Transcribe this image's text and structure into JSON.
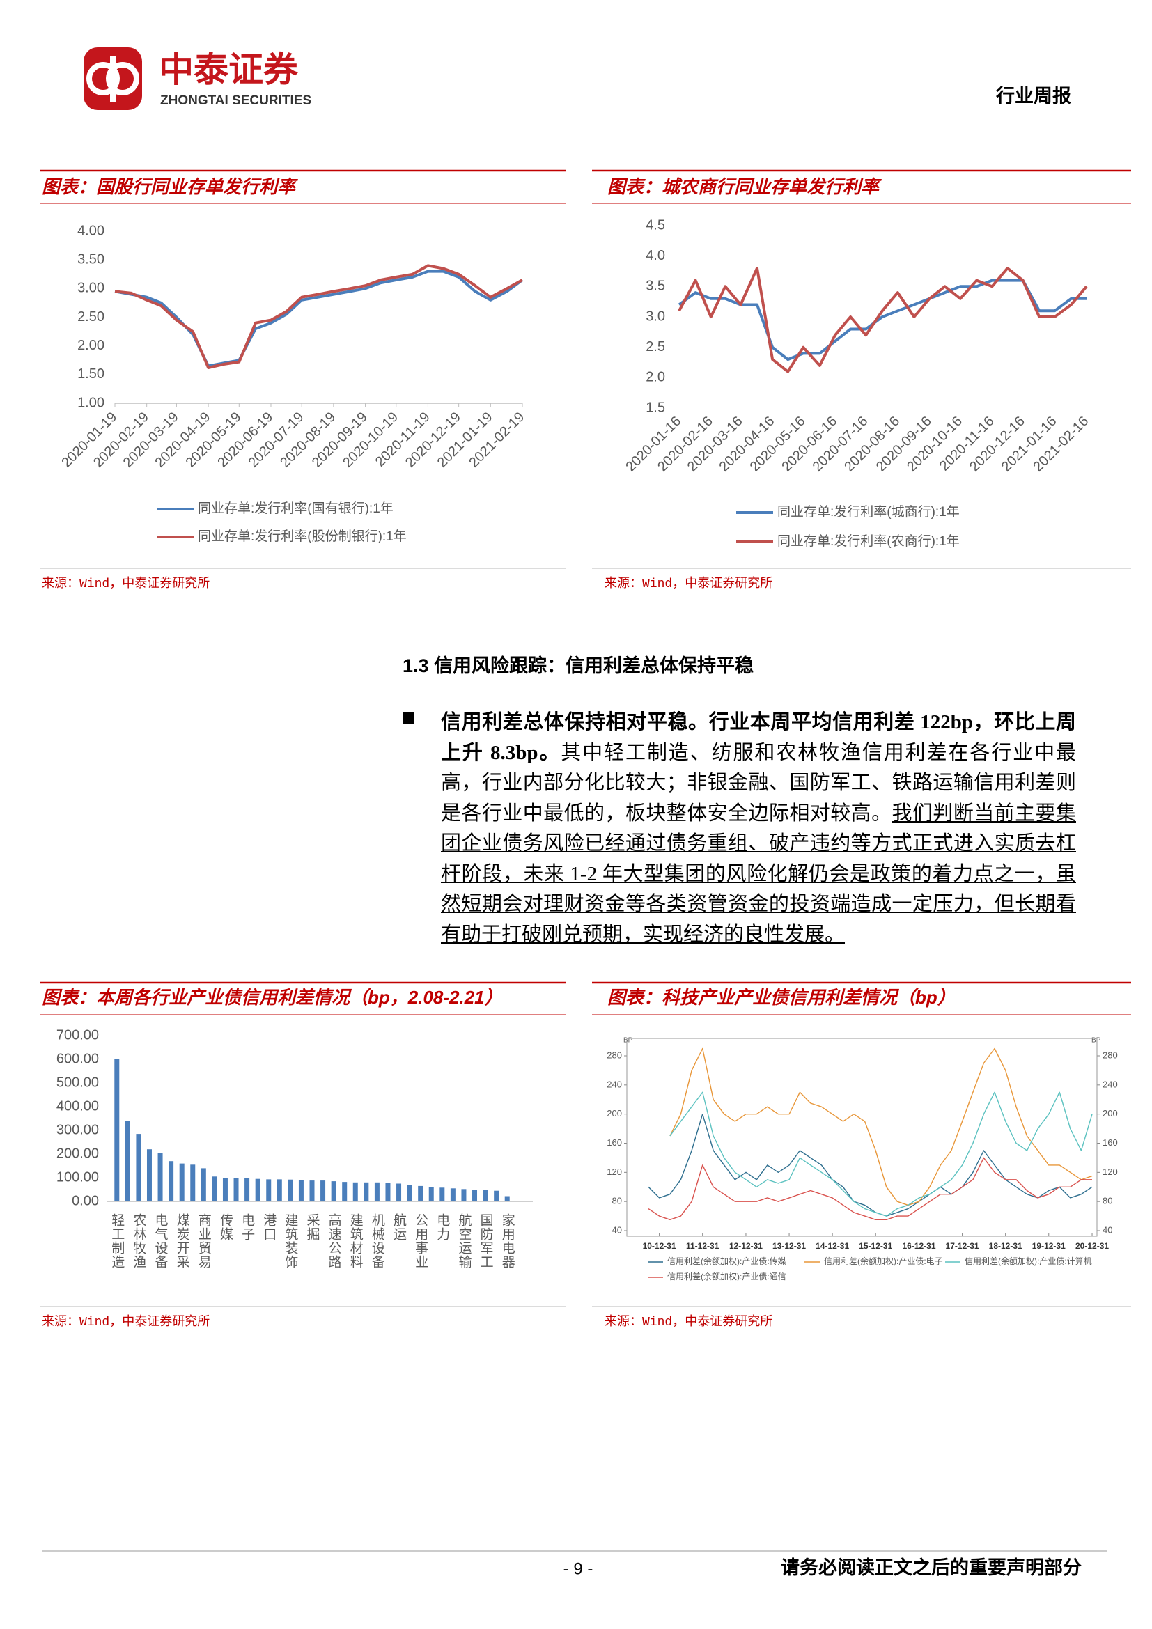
{
  "header": {
    "company": "中泰证券",
    "company_en": "ZHONGTAI SECURITIES",
    "report_type": "行业周报"
  },
  "chart_data": [
    {
      "type": "line",
      "title": "图表：国股行同业存单发行利率",
      "source": "来源：Wind，中泰证券研究所",
      "x": [
        "2020-01-19",
        "2020-02-04",
        "2020-02-19",
        "2020-03-04",
        "2020-03-19",
        "2020-04-04",
        "2020-04-19",
        "2020-05-04",
        "2020-05-19",
        "2020-06-04",
        "2020-06-19",
        "2020-07-04",
        "2020-07-19",
        "2020-08-04",
        "2020-08-19",
        "2020-09-04",
        "2020-09-19",
        "2020-10-04",
        "2020-10-19",
        "2020-11-04",
        "2020-11-19",
        "2020-12-04",
        "2020-12-19",
        "2021-01-04",
        "2021-01-19",
        "2021-02-04",
        "2021-02-19"
      ],
      "xlim": [
        "2020-01-19",
        "2021-02-19"
      ],
      "xticks": [
        "2020-01-19",
        "2020-02-19",
        "2020-03-19",
        "2020-04-19",
        "2020-05-19",
        "2020-06-19",
        "2020-07-19",
        "2020-08-19",
        "2020-09-19",
        "2020-10-19",
        "2020-11-19",
        "2020-12-19",
        "2021-01-19",
        "2021-02-19"
      ],
      "ylim": [
        1,
        4
      ],
      "yticks": [
        {
          "value": 1,
          "label": "1.00"
        },
        {
          "value": 1.5,
          "label": "1.50"
        },
        {
          "value": 2,
          "label": "2.00"
        },
        {
          "value": 2.5,
          "label": "2.50"
        },
        {
          "value": 3,
          "label": "3.00"
        },
        {
          "value": 3.5,
          "label": "3.50"
        },
        {
          "value": 4,
          "label": "4.00"
        }
      ],
      "series": [
        {
          "name": "同业存单:发行利率(国有银行):1年",
          "color": "#4a7ebb",
          "values": [
            2.95,
            2.9,
            2.85,
            2.75,
            2.5,
            2.2,
            1.65,
            1.7,
            1.75,
            2.3,
            2.4,
            2.55,
            2.8,
            2.85,
            2.9,
            2.95,
            3.0,
            3.1,
            3.15,
            3.2,
            3.3,
            3.3,
            3.2,
            2.95,
            2.8,
            2.95,
            3.15
          ]
        },
        {
          "name": "同业存单:发行利率(股份制银行):1年",
          "color": "#c0504d",
          "values": [
            2.95,
            2.92,
            2.8,
            2.7,
            2.45,
            2.25,
            1.62,
            1.68,
            1.72,
            2.4,
            2.45,
            2.6,
            2.85,
            2.9,
            2.95,
            3.0,
            3.05,
            3.15,
            3.2,
            3.25,
            3.4,
            3.35,
            3.25,
            3.05,
            2.85,
            3.0,
            3.15
          ]
        }
      ]
    },
    {
      "type": "line",
      "title": "图表：城农商行同业存单发行利率",
      "source": "来源：Wind，中泰证券研究所",
      "x": [
        "2020-01-16",
        "2020-02-01",
        "2020-02-16",
        "2020-03-01",
        "2020-03-16",
        "2020-04-01",
        "2020-04-16",
        "2020-05-01",
        "2020-05-16",
        "2020-06-01",
        "2020-06-16",
        "2020-07-01",
        "2020-07-16",
        "2020-08-01",
        "2020-08-16",
        "2020-09-01",
        "2020-09-16",
        "2020-10-01",
        "2020-10-16",
        "2020-11-01",
        "2020-11-16",
        "2020-12-01",
        "2020-12-16",
        "2021-01-01",
        "2021-01-16",
        "2021-02-01",
        "2021-02-16"
      ],
      "xlim": [
        "2020-01-16",
        "2021-02-16"
      ],
      "xticks": [
        "2020-01-16",
        "2020-02-16",
        "2020-03-16",
        "2020-04-16",
        "2020-05-16",
        "2020-06-16",
        "2020-07-16",
        "2020-08-16",
        "2020-09-16",
        "2020-10-16",
        "2020-11-16",
        "2020-12-16",
        "2021-01-16",
        "2021-02-16"
      ],
      "ylim": [
        1.5,
        4.5
      ],
      "yticks": [
        1.5,
        {
          "value": 2,
          "label": "2.0"
        },
        2.5,
        {
          "value": 3,
          "label": "3.0"
        },
        3.5,
        {
          "value": 4,
          "label": "4.0"
        },
        4.5
      ],
      "series": [
        {
          "name": "同业存单:发行利率(城商行):1年",
          "color": "#4a7ebb",
          "values": [
            3.2,
            3.4,
            3.3,
            3.3,
            3.2,
            3.2,
            2.5,
            2.3,
            2.4,
            2.4,
            2.6,
            2.8,
            2.8,
            3.0,
            3.1,
            3.2,
            3.3,
            3.4,
            3.5,
            3.5,
            3.6,
            3.6,
            3.6,
            3.1,
            3.1,
            3.3,
            3.3
          ]
        },
        {
          "name": "同业存单:发行利率(农商行):1年",
          "color": "#c0504d",
          "values": [
            3.1,
            3.6,
            3.0,
            3.5,
            3.2,
            3.8,
            2.3,
            2.1,
            2.5,
            2.2,
            2.7,
            3.0,
            2.7,
            3.1,
            3.4,
            3.0,
            3.3,
            3.5,
            3.3,
            3.6,
            3.5,
            3.8,
            3.6,
            3.0,
            3.0,
            3.2,
            3.5
          ]
        }
      ]
    },
    {
      "type": "bar",
      "title": "图表：本周各行业产业债信用利差情况（bp，2.08-2.21）",
      "source": "来源：Wind，中泰证券研究所",
      "categories": [
        "轻工制造",
        null,
        "农林牧渔",
        null,
        "电气设备",
        null,
        "煤炭开采",
        null,
        "商业贸易",
        null,
        "传媒",
        null,
        "电子",
        null,
        "港口",
        null,
        "建筑装饰",
        null,
        "采掘",
        null,
        "高速公路",
        null,
        "建筑材料",
        null,
        "机械设备",
        null,
        "航运",
        null,
        "公用事业",
        null,
        "电力",
        null,
        "航空运输",
        null,
        "国防军工",
        null,
        "家用电器"
      ],
      "values": [
        600,
        340,
        285,
        220,
        205,
        170,
        160,
        155,
        140,
        105,
        100,
        100,
        98,
        95,
        93,
        93,
        92,
        90,
        88,
        88,
        85,
        82,
        80,
        80,
        80,
        78,
        75,
        70,
        65,
        60,
        58,
        55,
        52,
        50,
        48,
        45,
        22
      ],
      "color": "#4a7ebb",
      "ylim": [
        0,
        700
      ],
      "yticks": [
        {
          "value": 0,
          "label": "0.00"
        },
        {
          "value": 100,
          "label": "100.00"
        },
        {
          "value": 200,
          "label": "200.00"
        },
        {
          "value": 300,
          "label": "300.00"
        },
        {
          "value": 400,
          "label": "400.00"
        },
        {
          "value": 500,
          "label": "500.00"
        },
        {
          "value": 600,
          "label": "600.00"
        },
        {
          "value": 700,
          "label": "700.00"
        }
      ]
    },
    {
      "type": "line",
      "title": "图表：科技产业产业债信用利差情况（bp）",
      "source": "来源：Wind，中泰证券研究所",
      "y_label": "BP",
      "y2_label": "BP",
      "x": [
        "10-09-30",
        "10-12-31",
        "11-03-31",
        "11-06-30",
        "11-09-30",
        "11-12-31",
        "12-03-31",
        "12-06-30",
        "12-09-30",
        "12-12-31",
        "13-03-31",
        "13-06-30",
        "13-09-30",
        "13-12-31",
        "14-03-31",
        "14-06-30",
        "14-09-30",
        "14-12-31",
        "15-03-31",
        "15-06-30",
        "15-09-30",
        "15-12-31",
        "16-03-31",
        "16-06-30",
        "16-09-30",
        "16-12-31",
        "17-03-31",
        "17-06-30",
        "17-09-30",
        "17-12-31",
        "18-03-31",
        "18-06-30",
        "18-09-30",
        "18-12-31",
        "19-03-31",
        "19-06-30",
        "19-09-30",
        "19-12-31",
        "20-03-31",
        "20-06-30",
        "20-09-30",
        "20-12-31"
      ],
      "xlim": [
        "10-04-01",
        "21-02-10"
      ],
      "xticks": [
        "10-12-31",
        "11-12-31",
        "12-12-31",
        "13-12-31",
        "14-12-31",
        "15-12-31",
        "16-12-31",
        "17-12-31",
        "18-12-31",
        "19-12-31",
        "20-12-31"
      ],
      "ylim": [
        40,
        280
      ],
      "yticks": [
        40,
        80,
        120,
        160,
        200,
        240,
        280
      ],
      "y2lim": [
        40,
        280
      ],
      "y2ticks": [
        40,
        80,
        120,
        160,
        200,
        240,
        280
      ],
      "series": [
        {
          "name": "信用利差(余额加权):产业债:传媒",
          "color": "#2f6f8f",
          "values": [
            100,
            85,
            90,
            110,
            150,
            200,
            150,
            130,
            110,
            120,
            110,
            130,
            120,
            130,
            150,
            140,
            130,
            110,
            100,
            80,
            75,
            65,
            60,
            65,
            70,
            80,
            90,
            100,
            90,
            100,
            120,
            150,
            130,
            110,
            100,
            90,
            85,
            95,
            100,
            85,
            90,
            100
          ]
        },
        {
          "name": "信用利差(余额加权):产业债:电子",
          "color": "#e8973a",
          "values": [
            null,
            null,
            170,
            200,
            260,
            290,
            220,
            200,
            190,
            200,
            200,
            210,
            200,
            200,
            230,
            215,
            210,
            200,
            190,
            200,
            190,
            150,
            100,
            80,
            75,
            80,
            100,
            130,
            150,
            190,
            230,
            270,
            290,
            260,
            210,
            170,
            150,
            130,
            130,
            120,
            110,
            115
          ]
        },
        {
          "name": "信用利差(余额加权):产业债:计算机",
          "color": "#5cc2c0",
          "values": [
            null,
            null,
            170,
            190,
            210,
            230,
            170,
            140,
            120,
            110,
            100,
            110,
            105,
            110,
            140,
            130,
            120,
            110,
            95,
            80,
            70,
            65,
            60,
            70,
            75,
            85,
            90,
            100,
            110,
            130,
            160,
            200,
            230,
            190,
            160,
            150,
            180,
            200,
            230,
            180,
            150,
            200
          ]
        },
        {
          "name": "信用利差(余额加权):产业债:通信",
          "color": "#d9534f",
          "values": [
            70,
            60,
            55,
            60,
            80,
            130,
            100,
            90,
            80,
            80,
            80,
            85,
            80,
            85,
            90,
            95,
            90,
            85,
            75,
            65,
            60,
            55,
            55,
            60,
            60,
            70,
            80,
            90,
            90,
            100,
            110,
            140,
            120,
            110,
            110,
            95,
            85,
            90,
            100,
            100,
            110,
            110
          ]
        }
      ]
    }
  ],
  "section": {
    "heading": "1.3 信用风险跟踪：信用利差总体保持平稳",
    "lead": "信用利差总体保持相对平稳。行业本周平均信用利差 122bp，环比上周上升 8.3bp。",
    "body": "其中轻工制造、纺服和农林牧渔信用利差在各行业中最高，行业内部分化比较大；非银金融、国防军工、铁路运输信用利差则是各行业中最低的，板块整体安全边际相对较高。",
    "emphasis": "我们判断当前主要集团企业债务风险已经通过债务重组、破产违约等方式正式进入实质去杠杆阶段，未来 1-2 年大型集团的风险化解仍会是政策的着力点之一，虽然短期会对理财资金等各类资管资金的投资端造成一定压力，但长期看有助于打破刚兑预期，实现经济的良性发展。"
  },
  "footer": {
    "page": "- 9 -",
    "notice": "请务必阅读正文之后的重要声明部分"
  }
}
